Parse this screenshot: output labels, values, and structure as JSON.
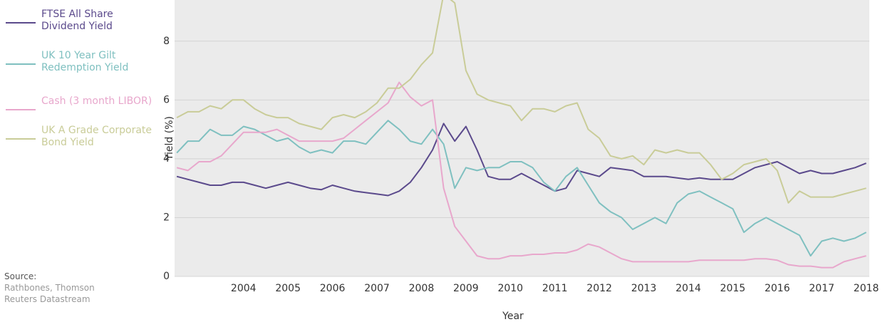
{
  "chart_data": {
    "type": "line",
    "x_label": "Year",
    "y_label": "Yield (%)",
    "source_label": "Source:",
    "source": "Rathbones, Thomson Reuters Datastream",
    "x": [
      2002.5,
      2002.75,
      2003,
      2003.25,
      2003.5,
      2003.75,
      2004,
      2004.25,
      2004.5,
      2004.75,
      2005,
      2005.25,
      2005.5,
      2005.75,
      2006,
      2006.25,
      2006.5,
      2006.75,
      2007,
      2007.25,
      2007.5,
      2007.75,
      2008,
      2008.25,
      2008.5,
      2008.75,
      2009,
      2009.25,
      2009.5,
      2009.75,
      2010,
      2010.25,
      2010.5,
      2010.75,
      2011,
      2011.25,
      2011.5,
      2011.75,
      2012,
      2012.25,
      2012.5,
      2012.75,
      2013,
      2013.25,
      2013.5,
      2013.75,
      2014,
      2014.25,
      2014.5,
      2014.75,
      2015,
      2015.25,
      2015.5,
      2015.75,
      2016,
      2016.25,
      2016.5,
      2016.75,
      2017,
      2017.25,
      2017.5,
      2017.75,
      2018
    ],
    "series": [
      {
        "name": "FTSE All Share Dividend Yield",
        "color": "#5b4a8c",
        "values": [
          3.4,
          3.3,
          3.2,
          3.1,
          3.1,
          3.2,
          3.2,
          3.1,
          3.0,
          3.1,
          3.2,
          3.1,
          3.0,
          2.95,
          3.1,
          3.0,
          2.9,
          2.85,
          2.8,
          2.75,
          2.9,
          3.2,
          3.7,
          4.3,
          5.2,
          4.6,
          5.1,
          4.3,
          3.4,
          3.3,
          3.3,
          3.5,
          3.3,
          3.1,
          2.9,
          3.0,
          3.6,
          3.5,
          3.4,
          3.7,
          3.65,
          3.6,
          3.4,
          3.4,
          3.4,
          3.35,
          3.3,
          3.35,
          3.3,
          3.3,
          3.3,
          3.5,
          3.7,
          3.8,
          3.9,
          3.7,
          3.5,
          3.6,
          3.5,
          3.5,
          3.6,
          3.7,
          3.85
        ]
      },
      {
        "name": "UK 10 Year Gilt Redemption Yield",
        "color": "#7fc0c0",
        "values": [
          4.2,
          4.6,
          4.6,
          5.0,
          4.8,
          4.8,
          5.1,
          5.0,
          4.8,
          4.6,
          4.7,
          4.4,
          4.2,
          4.3,
          4.2,
          4.6,
          4.6,
          4.5,
          4.9,
          5.3,
          5.0,
          4.6,
          4.5,
          5.0,
          4.5,
          3.0,
          3.7,
          3.6,
          3.7,
          3.7,
          3.9,
          3.9,
          3.7,
          3.2,
          2.9,
          3.4,
          3.7,
          3.1,
          2.5,
          2.2,
          2.0,
          1.6,
          1.8,
          2.0,
          1.8,
          2.5,
          2.8,
          2.9,
          2.7,
          2.5,
          2.3,
          1.5,
          1.8,
          2.0,
          1.8,
          1.6,
          1.4,
          0.7,
          1.2,
          1.3,
          1.2,
          1.3,
          1.5
        ]
      },
      {
        "name": "Cash (3 month LIBOR)",
        "color": "#e8a7cc",
        "values": [
          3.7,
          3.6,
          3.9,
          3.9,
          4.1,
          4.5,
          4.9,
          4.9,
          4.9,
          5.0,
          4.8,
          4.6,
          4.6,
          4.6,
          4.6,
          4.7,
          5.0,
          5.3,
          5.6,
          5.9,
          6.6,
          6.1,
          5.8,
          6.0,
          3.0,
          1.7,
          1.2,
          0.7,
          0.6,
          0.6,
          0.7,
          0.7,
          0.75,
          0.75,
          0.8,
          0.8,
          0.9,
          1.1,
          1.0,
          0.8,
          0.6,
          0.5,
          0.5,
          0.5,
          0.5,
          0.5,
          0.5,
          0.55,
          0.55,
          0.55,
          0.55,
          0.55,
          0.6,
          0.6,
          0.55,
          0.4,
          0.35,
          0.35,
          0.3,
          0.3,
          0.5,
          0.6,
          0.7
        ]
      },
      {
        "name": "UK A Grade Corporate Bond Yield",
        "color": "#c9cc98",
        "values": [
          5.4,
          5.6,
          5.6,
          5.8,
          5.7,
          6.0,
          6.0,
          5.7,
          5.5,
          5.4,
          5.4,
          5.2,
          5.1,
          5.0,
          5.4,
          5.5,
          5.4,
          5.6,
          5.9,
          6.4,
          6.4,
          6.7,
          7.2,
          7.6,
          9.6,
          9.3,
          7.0,
          6.2,
          6.0,
          5.9,
          5.8,
          5.3,
          5.7,
          5.7,
          5.6,
          5.8,
          5.9,
          5.0,
          4.7,
          4.1,
          4.0,
          4.1,
          3.8,
          4.3,
          4.2,
          4.3,
          4.2,
          4.2,
          3.8,
          3.3,
          3.5,
          3.8,
          3.9,
          4.0,
          3.6,
          2.5,
          2.9,
          2.7,
          2.7,
          2.7,
          2.8,
          2.9,
          3.0
        ]
      }
    ],
    "xlim": [
      2002.45,
      2018.07
    ],
    "xticks": [
      2004,
      2005,
      2006,
      2007,
      2008,
      2009,
      2010,
      2011,
      2012,
      2013,
      2014,
      2015,
      2016,
      2017,
      2018
    ],
    "ylim": [
      0,
      9.4
    ],
    "yticks": [
      0,
      2,
      4,
      6,
      8
    ],
    "grid": true
  }
}
